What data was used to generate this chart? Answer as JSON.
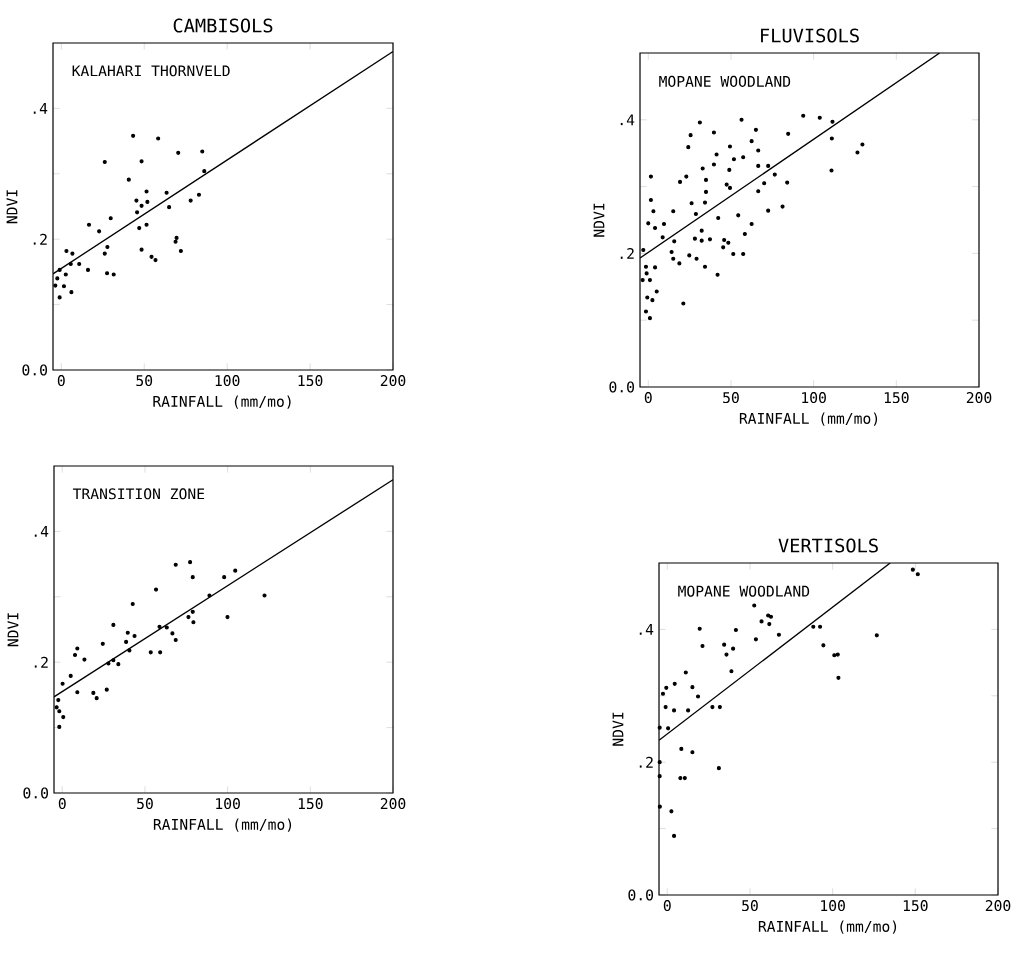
{
  "chart_data": [
    {
      "type": "scatter",
      "title": "CAMBISOLS",
      "xlabel": "RAINFALL (mm/mo)",
      "ylabel": "NDVI",
      "annotations": [
        "KALAHARI THORNVELD"
      ],
      "xlim": [
        -5,
        200
      ],
      "ylim": [
        0,
        0.5
      ],
      "xticks": [
        0,
        50,
        100,
        150,
        200
      ],
      "yticks": [
        {
          "value": 0,
          "label": "0.0"
        },
        {
          "value": 0.1,
          "label": null
        },
        {
          "value": 0.2,
          "label": ".2"
        },
        {
          "value": 0.3,
          "label": null
        },
        {
          "value": 0.4,
          "label": ".4"
        }
      ],
      "marker": "circle",
      "series": [
        {
          "color": "#000000",
          "x": [
            43.3,
            58.4,
            26.2,
            48.4,
            70.5,
            85,
            86.2,
            40.7,
            51.4,
            45.3,
            51.9,
            63.5,
            65,
            78,
            83,
            45.7,
            48.4,
            29.8,
            16.7,
            22.8,
            47,
            51.4,
            69.5,
            68.9,
            72.1,
            27.8,
            26.2,
            48.4,
            54.4,
            56.8,
            27.6,
            31.6,
            16.1,
            3.1,
            6.7,
            10.8,
            5.7,
            -1,
            2.7,
            -2.4,
            1.6,
            6.1,
            -1,
            -3.6
          ],
          "values": [
            0.358,
            0.354,
            0.318,
            0.319,
            0.332,
            0.334,
            0.304,
            0.291,
            0.273,
            0.259,
            0.257,
            0.271,
            0.249,
            0.259,
            0.268,
            0.241,
            0.251,
            0.232,
            0.222,
            0.212,
            0.217,
            0.222,
            0.202,
            0.196,
            0.182,
            0.188,
            0.178,
            0.184,
            0.173,
            0.168,
            0.148,
            0.146,
            0.153,
            0.182,
            0.178,
            0.162,
            0.162,
            0.153,
            0.146,
            0.14,
            0.128,
            0.119,
            0.111,
            0.129
          ]
        },
        {
          "type": "line",
          "marker": "none",
          "color": "#000000",
          "x": [
            -5,
            200
          ],
          "values": [
            0.147,
            0.487
          ]
        }
      ]
    },
    {
      "type": "scatter",
      "title": "FLUVISOLS",
      "xlabel": "RAINFALL (mm/mo)",
      "ylabel": "NDVI",
      "annotations": [
        "MOPANE WOODLAND"
      ],
      "xlim": [
        -5,
        200
      ],
      "ylim": [
        0,
        0.5
      ],
      "xticks": [
        0,
        50,
        100,
        150,
        200
      ],
      "yticks": [
        {
          "value": 0,
          "label": "0.0"
        },
        {
          "value": 0.1,
          "label": null
        },
        {
          "value": 0.2,
          "label": ".2"
        },
        {
          "value": 0.3,
          "label": null
        },
        {
          "value": 0.4,
          "label": ".4"
        }
      ],
      "marker": "circle",
      "series": [
        {
          "color": "#000000",
          "x": [
            31.2,
            56.4,
            65.1,
            39.7,
            25.6,
            84.6,
            93.7,
            103.7,
            111.4,
            111,
            129.5,
            126.5,
            110.8,
            24.2,
            49.4,
            62.5,
            41.3,
            51.8,
            57.4,
            66.5,
            32.9,
            39.7,
            49,
            66.5,
            72.5,
            76.5,
            23,
            19.2,
            34.9,
            47.4,
            49.4,
            70.1,
            84,
            1.6,
            66.5,
            34.9,
            26.2,
            34.3,
            1.6,
            3.1,
            15.1,
            28.8,
            0,
            42.3,
            54.4,
            72.5,
            81.2,
            4.1,
            9.5,
            62.5,
            32.3,
            8.7,
            15.7,
            28.2,
            32.3,
            37.3,
            45.9,
            48.4,
            45.3,
            58.4,
            51.4,
            57.4,
            14.1,
            24.8,
            29.2,
            15.1,
            18.8,
            34.3,
            41.9,
            -1.4,
            4.1,
            -1,
            1,
            5.1,
            2.5,
            21.2,
            -0.6,
            -1.4,
            1,
            -3.4,
            -3
          ],
          "values": [
            0.396,
            0.4,
            0.385,
            0.381,
            0.377,
            0.379,
            0.406,
            0.403,
            0.397,
            0.372,
            0.363,
            0.351,
            0.324,
            0.359,
            0.36,
            0.368,
            0.348,
            0.341,
            0.344,
            0.354,
            0.327,
            0.333,
            0.325,
            0.331,
            0.331,
            0.318,
            0.315,
            0.307,
            0.31,
            0.303,
            0.298,
            0.305,
            0.306,
            0.315,
            0.293,
            0.292,
            0.275,
            0.276,
            0.28,
            0.263,
            0.263,
            0.259,
            0.245,
            0.253,
            0.257,
            0.264,
            0.27,
            0.238,
            0.244,
            0.244,
            0.234,
            0.224,
            0.218,
            0.222,
            0.219,
            0.221,
            0.22,
            0.216,
            0.209,
            0.229,
            0.199,
            0.199,
            0.202,
            0.197,
            0.192,
            0.192,
            0.185,
            0.18,
            0.168,
            0.18,
            0.179,
            0.17,
            0.16,
            0.143,
            0.13,
            0.125,
            0.134,
            0.113,
            0.103,
            0.16,
            0.205
          ]
        },
        {
          "type": "line",
          "marker": "none",
          "color": "#000000",
          "x": [
            -5,
            176.2
          ],
          "values": [
            0.193,
            0.5
          ]
        }
      ]
    },
    {
      "type": "scatter",
      "xlabel": "RAINFALL (mm/mo)",
      "ylabel": "NDVI",
      "annotations": [
        "TRANSITION ZONE"
      ],
      "xlim": [
        -5,
        200
      ],
      "ylim": [
        0,
        0.5
      ],
      "xticks": [
        0,
        50,
        100,
        150,
        200
      ],
      "yticks": [
        {
          "value": 0,
          "label": "0.0"
        },
        {
          "value": 0.1,
          "label": null
        },
        {
          "value": 0.2,
          "label": ".2"
        },
        {
          "value": 0.3,
          "label": null
        },
        {
          "value": 0.4,
          "label": ".4"
        }
      ],
      "marker": "circle",
      "series": [
        {
          "color": "#000000",
          "x": [
            68.6,
            77.3,
            78.9,
            56.7,
            97.9,
            104.6,
            122.3,
            99.9,
            89,
            42.6,
            30.9,
            58.8,
            63.2,
            66.6,
            68.6,
            76.3,
            78.9,
            79.3,
            39.6,
            43.7,
            38.6,
            24.5,
            40.6,
            53.5,
            59.2,
            30.9,
            33.9,
            27.9,
            9.1,
            7.7,
            13.4,
            5.1,
            0.2,
            9.1,
            18.8,
            20.8,
            26.9,
            -2.4,
            -1.8,
            0.6,
            -1.8,
            -3.4
          ],
          "values": [
            0.349,
            0.353,
            0.33,
            0.311,
            0.33,
            0.34,
            0.302,
            0.269,
            0.302,
            0.289,
            0.257,
            0.254,
            0.253,
            0.244,
            0.234,
            0.269,
            0.277,
            0.261,
            0.245,
            0.24,
            0.231,
            0.228,
            0.218,
            0.215,
            0.215,
            0.203,
            0.197,
            0.198,
            0.221,
            0.211,
            0.204,
            0.179,
            0.167,
            0.154,
            0.153,
            0.145,
            0.158,
            0.142,
            0.125,
            0.116,
            0.101,
            0.131
          ]
        },
        {
          "type": "line",
          "marker": "none",
          "color": "#000000",
          "x": [
            -5,
            200
          ],
          "values": [
            0.147,
            0.479
          ]
        }
      ]
    },
    {
      "type": "scatter",
      "title": "VERTISOLS",
      "xlabel": "RAINFALL (mm/mo)",
      "ylabel": "NDVI",
      "annotations": [
        "MOPANE WOODLAND"
      ],
      "xlim": [
        -5,
        200
      ],
      "ylim": [
        0,
        0.5
      ],
      "xticks": [
        0,
        50,
        100,
        150,
        200
      ],
      "yticks": [
        {
          "value": 0,
          "label": "0.0"
        },
        {
          "value": 0.1,
          "label": null
        },
        {
          "value": 0.2,
          "label": ".2"
        },
        {
          "value": 0.3,
          "label": null
        },
        {
          "value": 0.4,
          "label": ".4"
        }
      ],
      "marker": "circle",
      "series": [
        {
          "color": "#000000",
          "x": [
            151.5,
            148.5,
            52.6,
            57,
            61,
            62.7,
            61.7,
            19.6,
            41.5,
            53.6,
            67.5,
            88.3,
            92.4,
            21.3,
            34.4,
            39.8,
            35.8,
            94.4,
            101,
            103.1,
            126.7,
            103.5,
            38.8,
            11.2,
            4.5,
            15.2,
            -0.6,
            -2.6,
            18.6,
            -1,
            4.1,
            12.6,
            27.3,
            31.8,
            -4.6,
            0.5,
            8.5,
            15.2,
            -4.6,
            31.2,
            7.9,
            10.6,
            -4.6,
            -4.5,
            2.5,
            4.1
          ],
          "values": [
            0.483,
            0.49,
            0.436,
            0.412,
            0.421,
            0.419,
            0.408,
            0.401,
            0.399,
            0.385,
            0.392,
            0.404,
            0.404,
            0.375,
            0.377,
            0.371,
            0.362,
            0.376,
            0.361,
            0.362,
            0.391,
            0.327,
            0.337,
            0.335,
            0.318,
            0.313,
            0.312,
            0.303,
            0.299,
            0.283,
            0.278,
            0.278,
            0.283,
            0.283,
            0.252,
            0.251,
            0.22,
            0.215,
            0.2,
            0.191,
            0.176,
            0.176,
            0.179,
            0.133,
            0.126,
            0.089
          ]
        },
        {
          "type": "line",
          "marker": "none",
          "color": "#000000",
          "x": [
            -5,
            134.8
          ],
          "values": [
            0.233,
            0.5
          ]
        }
      ]
    }
  ]
}
